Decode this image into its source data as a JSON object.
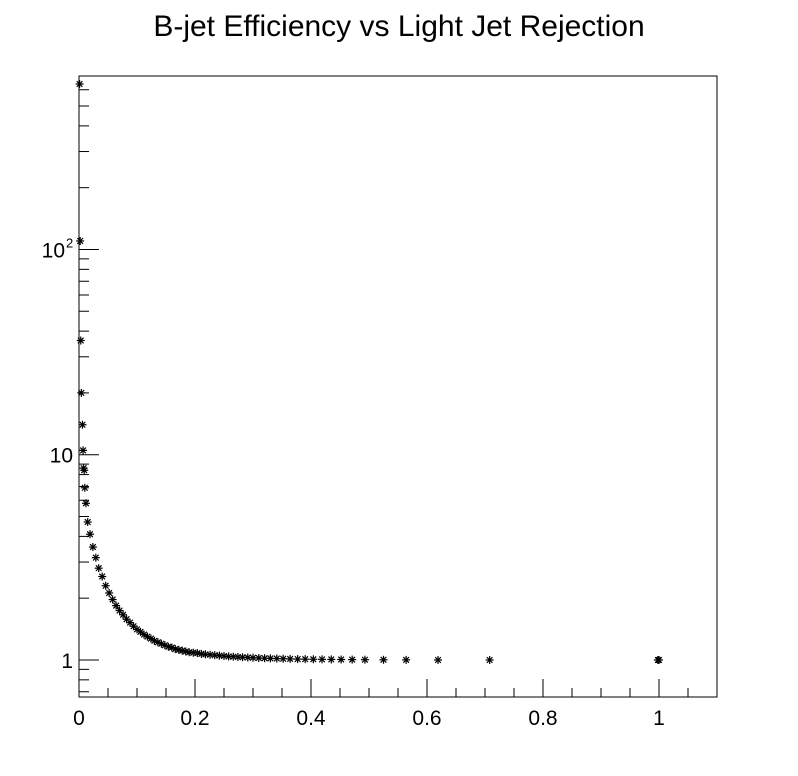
{
  "chart_data": {
    "type": "scatter",
    "title": "B-jet Efficiency vs Light Jet Rejection",
    "xlabel": "",
    "ylabel": "",
    "xlim": [
      0,
      1.1
    ],
    "ylim": [
      0.66,
      700
    ],
    "yscale": "log",
    "grid": false,
    "marker": "asterisk",
    "color": "#000000",
    "x_ticks": [
      {
        "value": 0,
        "label": "0"
      },
      {
        "value": 0.2,
        "label": "0.2"
      },
      {
        "value": 0.4,
        "label": "0.4"
      },
      {
        "value": 0.6,
        "label": "0.6"
      },
      {
        "value": 0.8,
        "label": "0.8"
      },
      {
        "value": 1,
        "label": "1"
      }
    ],
    "y_ticks": [
      {
        "value": 1,
        "label": "1",
        "exp": ""
      },
      {
        "value": 10,
        "label": "10",
        "exp": ""
      },
      {
        "value": 100,
        "label": "10",
        "exp": "2"
      }
    ],
    "series": [
      {
        "points": [
          [
            0.001,
            640
          ],
          [
            0.002,
            110
          ],
          [
            0.003,
            36
          ],
          [
            0.004,
            20
          ],
          [
            0.006,
            14
          ],
          [
            0.007,
            10.5
          ],
          [
            0.008,
            8.6
          ],
          [
            0.009,
            8.4
          ],
          [
            0.01,
            6.9
          ],
          [
            0.012,
            5.8
          ],
          [
            0.015,
            4.7
          ],
          [
            0.019,
            4.1
          ],
          [
            0.024,
            3.55
          ],
          [
            0.029,
            3.15
          ],
          [
            0.034,
            2.8
          ],
          [
            0.04,
            2.55
          ],
          [
            0.046,
            2.3
          ],
          [
            0.052,
            2.12
          ],
          [
            0.058,
            1.97
          ],
          [
            0.064,
            1.84
          ],
          [
            0.07,
            1.74
          ],
          [
            0.076,
            1.66
          ],
          [
            0.082,
            1.58
          ],
          [
            0.088,
            1.52
          ],
          [
            0.094,
            1.46
          ],
          [
            0.1,
            1.41
          ],
          [
            0.106,
            1.37
          ],
          [
            0.112,
            1.33
          ],
          [
            0.118,
            1.3
          ],
          [
            0.124,
            1.27
          ],
          [
            0.13,
            1.24
          ],
          [
            0.136,
            1.22
          ],
          [
            0.142,
            1.2
          ],
          [
            0.148,
            1.18
          ],
          [
            0.154,
            1.16
          ],
          [
            0.16,
            1.15
          ],
          [
            0.166,
            1.13
          ],
          [
            0.172,
            1.12
          ],
          [
            0.178,
            1.11
          ],
          [
            0.184,
            1.1
          ],
          [
            0.19,
            1.09
          ],
          [
            0.197,
            1.085
          ],
          [
            0.204,
            1.08
          ],
          [
            0.211,
            1.07
          ],
          [
            0.218,
            1.065
          ],
          [
            0.226,
            1.06
          ],
          [
            0.234,
            1.055
          ],
          [
            0.242,
            1.05
          ],
          [
            0.25,
            1.045
          ],
          [
            0.258,
            1.04
          ],
          [
            0.266,
            1.037
          ],
          [
            0.274,
            1.034
          ],
          [
            0.282,
            1.031
          ],
          [
            0.291,
            1.028
          ],
          [
            0.3,
            1.025
          ],
          [
            0.31,
            1.022
          ],
          [
            0.32,
            1.02
          ],
          [
            0.33,
            1.018
          ],
          [
            0.341,
            1.016
          ],
          [
            0.352,
            1.014
          ],
          [
            0.364,
            1.012
          ],
          [
            0.377,
            1.01
          ],
          [
            0.39,
            1.009
          ],
          [
            0.404,
            1.008
          ],
          [
            0.419,
            1.007
          ],
          [
            0.435,
            1.006
          ],
          [
            0.452,
            1.005
          ],
          [
            0.471,
            1.004
          ],
          [
            0.493,
            1.003
          ],
          [
            0.525,
            1.002
          ],
          [
            0.564,
            1.001
          ],
          [
            0.619,
            1.0
          ],
          [
            0.708,
            1.0
          ],
          [
            0.998,
            1.0
          ],
          [
            1.0,
            1.0
          ]
        ]
      }
    ]
  }
}
